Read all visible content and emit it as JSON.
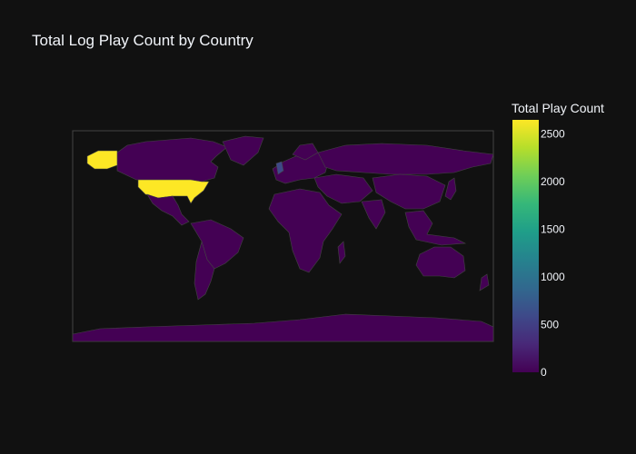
{
  "chart_data": {
    "type": "choropleth",
    "title": "Total Log Play Count by Country",
    "colorbar": {
      "title": "Total Play Count",
      "range": [
        0,
        2650
      ],
      "ticks": [
        0,
        500,
        1000,
        1500,
        2000,
        2500
      ],
      "colorscale": "viridis"
    },
    "projection": "equirectangular",
    "countries": [
      {
        "name": "United States",
        "value": 2650
      },
      {
        "name": "United Kingdom",
        "value": 350
      },
      {
        "name": "Canada",
        "value": 10
      },
      {
        "name": "Mexico",
        "value": 5
      },
      {
        "name": "Brazil",
        "value": 5
      },
      {
        "name": "Argentina",
        "value": 5
      },
      {
        "name": "Germany",
        "value": 10
      },
      {
        "name": "France",
        "value": 10
      },
      {
        "name": "Russia",
        "value": 5
      },
      {
        "name": "China",
        "value": 5
      },
      {
        "name": "India",
        "value": 10
      },
      {
        "name": "Australia",
        "value": 10
      },
      {
        "name": "South Africa",
        "value": 5
      },
      {
        "name": "Japan",
        "value": 5
      },
      {
        "name": "Antarctica",
        "value": 0
      }
    ],
    "colors": {
      "background": "#111111",
      "frame": "#444444",
      "low": "#440154",
      "high": "#fde725"
    }
  }
}
